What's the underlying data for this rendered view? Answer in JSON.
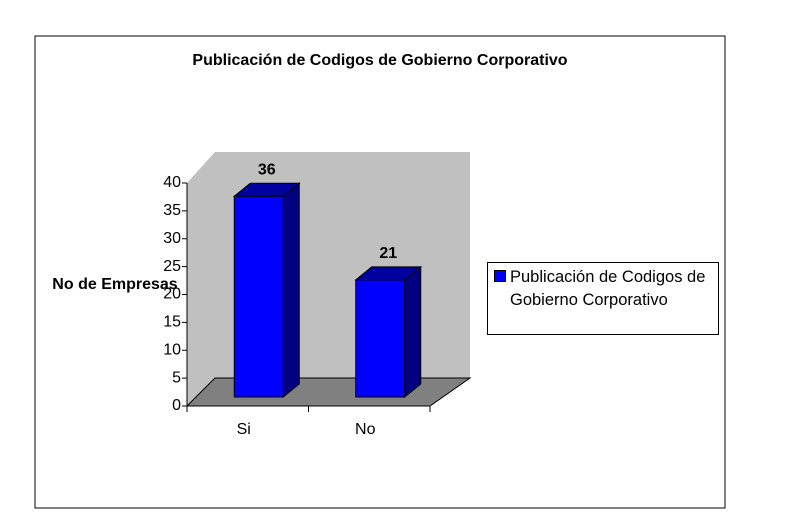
{
  "chart_data": {
    "type": "bar",
    "title": "Publicación de Codigos de Gobierno Corporativo",
    "y_label": "No de Empresas",
    "categories": [
      "Si",
      "No"
    ],
    "series": [
      {
        "name": "Publicación de Codigos de Gobierno Corporativo",
        "color": "#0000ff",
        "values": [
          36,
          21
        ]
      }
    ],
    "ylim": [
      0,
      40
    ],
    "yticks": [
      0,
      5,
      10,
      15,
      20,
      25,
      30,
      35,
      40
    ],
    "legend": "right"
  }
}
